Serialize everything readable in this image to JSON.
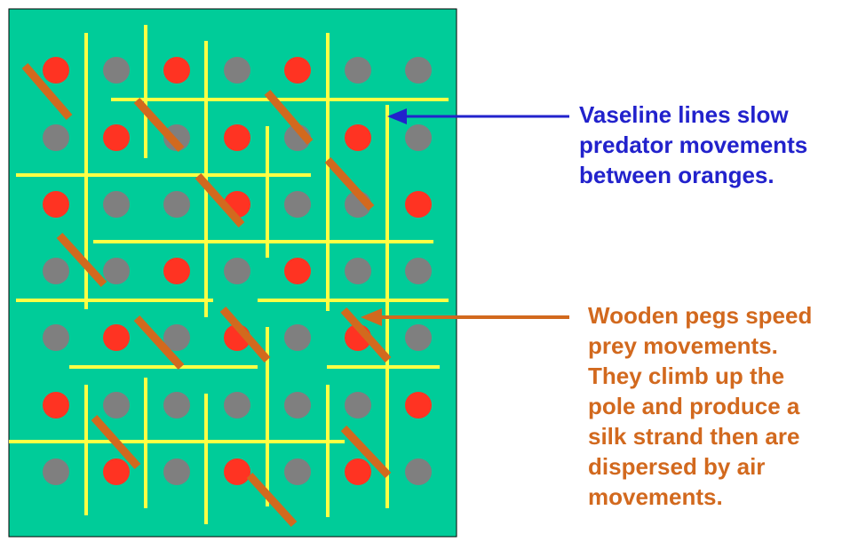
{
  "colors": {
    "background": "#00CC99",
    "orange_red": "#FF3322",
    "orange_gray": "#7F7F7F",
    "vaseline_line": "#FFFF44",
    "wooden_peg": "#D2691E",
    "vaseline_annotation": "#2222CC",
    "peg_annotation": "#D2691E"
  },
  "grid": {
    "rows": 7,
    "cols": 7,
    "pattern": [
      [
        "red",
        "gray",
        "red",
        "gray",
        "red",
        "gray",
        "gray"
      ],
      [
        "gray",
        "red",
        "gray",
        "red",
        "gray",
        "red",
        "gray"
      ],
      [
        "red",
        "gray",
        "gray",
        "red",
        "gray",
        "gray",
        "red"
      ],
      [
        "gray",
        "gray",
        "red",
        "gray",
        "red",
        "gray",
        "gray"
      ],
      [
        "gray",
        "red",
        "gray",
        "red",
        "gray",
        "red",
        "gray"
      ],
      [
        "red",
        "gray",
        "gray",
        "gray",
        "gray",
        "gray",
        "red"
      ],
      [
        "gray",
        "red",
        "gray",
        "red",
        "gray",
        "red",
        "gray"
      ]
    ]
  },
  "annotations": {
    "vaseline": {
      "lines": [
        "Vaseline lines slow",
        "predator movements",
        "between oranges."
      ]
    },
    "pegs": {
      "lines": [
        "Wooden pegs speed",
        "prey movements.",
        "They climb up the",
        "pole and produce a",
        "silk strand then are",
        "dispersed by air",
        "movements."
      ]
    }
  }
}
